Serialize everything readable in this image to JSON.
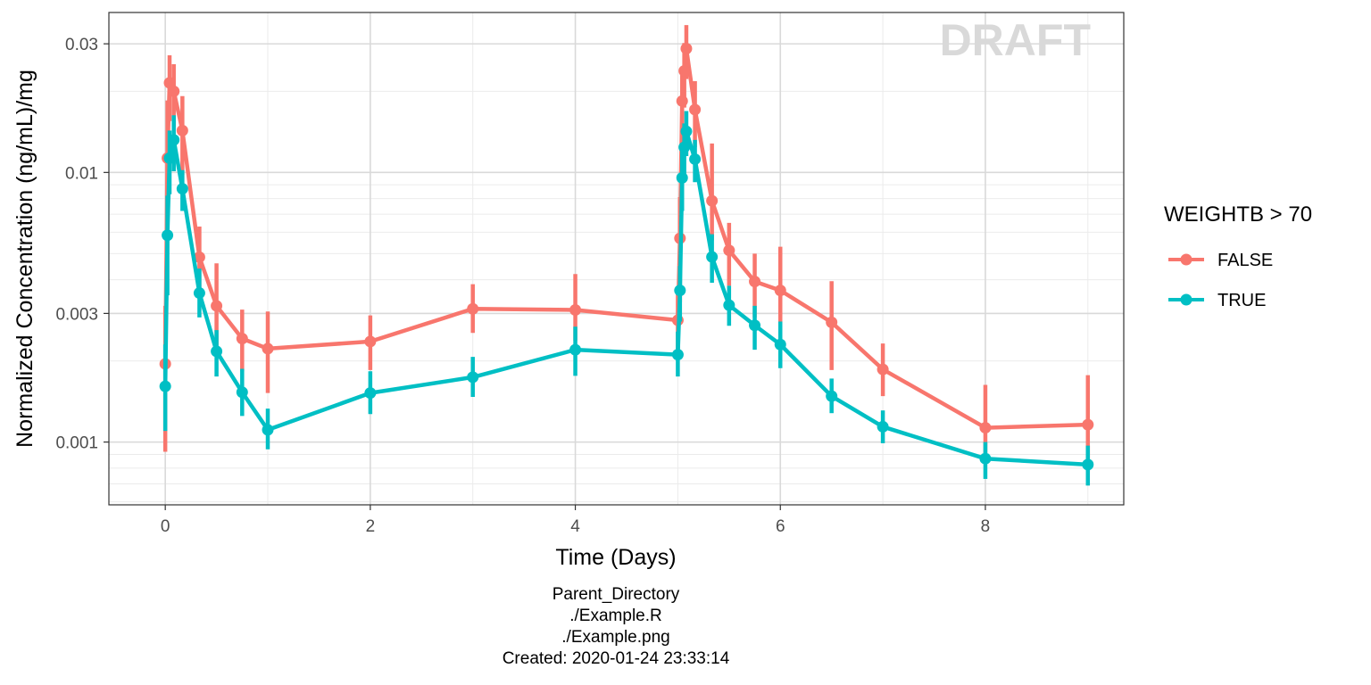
{
  "chart_data": {
    "type": "line",
    "watermark": "DRAFT",
    "xlabel": "Time (Days)",
    "ylabel": "Normalized Concentration (ng/mL)/mg",
    "xlim": [
      -0.55,
      9.35
    ],
    "ylim": [
      0.000585,
      0.0392
    ],
    "y_scale": "log",
    "x_ticks": [
      0,
      2,
      4,
      6,
      8
    ],
    "x_tick_labels": [
      "0",
      "2",
      "4",
      "6",
      "8"
    ],
    "y_ticks": [
      0.001,
      0.003,
      0.01,
      0.03
    ],
    "y_tick_labels": [
      "0.001",
      "0.003",
      "0.01",
      "0.03"
    ],
    "grid": true,
    "legend": {
      "title": "WEIGHTB > 70",
      "position": "right"
    },
    "series": [
      {
        "name": "FALSE",
        "color": "#F8766D",
        "points": [
          {
            "x": 0.0,
            "y": 0.00195,
            "lo": 0.00092,
            "hi": 0.0032
          },
          {
            "x": 0.021,
            "y": 0.0113,
            "lo": 0.0068,
            "hi": 0.0185
          },
          {
            "x": 0.042,
            "y": 0.0215,
            "lo": 0.0155,
            "hi": 0.0272
          },
          {
            "x": 0.083,
            "y": 0.02,
            "lo": 0.0148,
            "hi": 0.0252
          },
          {
            "x": 0.167,
            "y": 0.0143,
            "lo": 0.0098,
            "hi": 0.0192
          },
          {
            "x": 0.333,
            "y": 0.00485,
            "lo": 0.0034,
            "hi": 0.0063
          },
          {
            "x": 0.5,
            "y": 0.0032,
            "lo": 0.0021,
            "hi": 0.0046
          },
          {
            "x": 0.75,
            "y": 0.00242,
            "lo": 0.00183,
            "hi": 0.0031
          },
          {
            "x": 1.0,
            "y": 0.00222,
            "lo": 0.00152,
            "hi": 0.00305
          },
          {
            "x": 2.0,
            "y": 0.00236,
            "lo": 0.00185,
            "hi": 0.00295
          },
          {
            "x": 3.0,
            "y": 0.00312,
            "lo": 0.00254,
            "hi": 0.00385
          },
          {
            "x": 4.0,
            "y": 0.00309,
            "lo": 0.00238,
            "hi": 0.0042
          },
          {
            "x": 5.0,
            "y": 0.00283,
            "lo": 0.00208,
            "hi": 0.0036
          },
          {
            "x": 5.021,
            "y": 0.0057,
            "lo": 0.0033,
            "hi": 0.0081
          },
          {
            "x": 5.042,
            "y": 0.0184,
            "lo": 0.0129,
            "hi": 0.0239
          },
          {
            "x": 5.063,
            "y": 0.0238,
            "lo": 0.0174,
            "hi": 0.0302
          },
          {
            "x": 5.083,
            "y": 0.0288,
            "lo": 0.0222,
            "hi": 0.0352
          },
          {
            "x": 5.167,
            "y": 0.0171,
            "lo": 0.0124,
            "hi": 0.0218
          },
          {
            "x": 5.333,
            "y": 0.00785,
            "lo": 0.0056,
            "hi": 0.0128
          },
          {
            "x": 5.5,
            "y": 0.00514,
            "lo": 0.0038,
            "hi": 0.0065
          },
          {
            "x": 5.75,
            "y": 0.00394,
            "lo": 0.0029,
            "hi": 0.005
          },
          {
            "x": 6.0,
            "y": 0.00365,
            "lo": 0.0028,
            "hi": 0.0053
          },
          {
            "x": 6.5,
            "y": 0.00278,
            "lo": 0.00185,
            "hi": 0.00395
          },
          {
            "x": 7.0,
            "y": 0.00186,
            "lo": 0.00148,
            "hi": 0.00232
          },
          {
            "x": 8.0,
            "y": 0.00113,
            "lo": 0.00087,
            "hi": 0.00163
          },
          {
            "x": 9.0,
            "y": 0.00116,
            "lo": 0.00078,
            "hi": 0.00177
          }
        ]
      },
      {
        "name": "TRUE",
        "color": "#00BFC4",
        "points": [
          {
            "x": 0.0,
            "y": 0.00161,
            "lo": 0.0011,
            "hi": 0.0023
          },
          {
            "x": 0.021,
            "y": 0.00585,
            "lo": 0.0035,
            "hi": 0.0082
          },
          {
            "x": 0.042,
            "y": 0.0113,
            "lo": 0.0083,
            "hi": 0.0143
          },
          {
            "x": 0.083,
            "y": 0.0132,
            "lo": 0.0101,
            "hi": 0.0163
          },
          {
            "x": 0.167,
            "y": 0.0087,
            "lo": 0.0072,
            "hi": 0.0102
          },
          {
            "x": 0.333,
            "y": 0.00357,
            "lo": 0.0029,
            "hi": 0.0044
          },
          {
            "x": 0.5,
            "y": 0.00217,
            "lo": 0.00175,
            "hi": 0.0026
          },
          {
            "x": 0.75,
            "y": 0.00153,
            "lo": 0.00125,
            "hi": 0.00187
          },
          {
            "x": 1.0,
            "y": 0.00111,
            "lo": 0.00094,
            "hi": 0.00133
          },
          {
            "x": 2.0,
            "y": 0.00152,
            "lo": 0.00127,
            "hi": 0.00183
          },
          {
            "x": 3.0,
            "y": 0.00174,
            "lo": 0.00147,
            "hi": 0.00207
          },
          {
            "x": 4.0,
            "y": 0.0022,
            "lo": 0.00176,
            "hi": 0.00268
          },
          {
            "x": 5.0,
            "y": 0.00211,
            "lo": 0.00175,
            "hi": 0.00257
          },
          {
            "x": 5.021,
            "y": 0.00365,
            "lo": 0.0028,
            "hi": 0.0045
          },
          {
            "x": 5.042,
            "y": 0.00955,
            "lo": 0.0072,
            "hi": 0.012
          },
          {
            "x": 5.063,
            "y": 0.0124,
            "lo": 0.0096,
            "hi": 0.0152
          },
          {
            "x": 5.083,
            "y": 0.0142,
            "lo": 0.0115,
            "hi": 0.0169
          },
          {
            "x": 5.167,
            "y": 0.0112,
            "lo": 0.0092,
            "hi": 0.0132
          },
          {
            "x": 5.333,
            "y": 0.00486,
            "lo": 0.0039,
            "hi": 0.0059
          },
          {
            "x": 5.5,
            "y": 0.00322,
            "lo": 0.0027,
            "hi": 0.0038
          },
          {
            "x": 5.75,
            "y": 0.00271,
            "lo": 0.0022,
            "hi": 0.0032
          },
          {
            "x": 6.0,
            "y": 0.0023,
            "lo": 0.00188,
            "hi": 0.0028
          },
          {
            "x": 6.5,
            "y": 0.00148,
            "lo": 0.00128,
            "hi": 0.00172
          },
          {
            "x": 7.0,
            "y": 0.00114,
            "lo": 0.00099,
            "hi": 0.00131
          },
          {
            "x": 8.0,
            "y": 0.000868,
            "lo": 0.00073,
            "hi": 0.001
          },
          {
            "x": 9.0,
            "y": 0.000825,
            "lo": 0.00069,
            "hi": 0.00097
          }
        ]
      }
    ]
  },
  "caption": {
    "lines": [
      "Parent_Directory",
      "./Example.R",
      "./Example.png",
      "Created: 2020-01-24 23:33:14"
    ]
  }
}
